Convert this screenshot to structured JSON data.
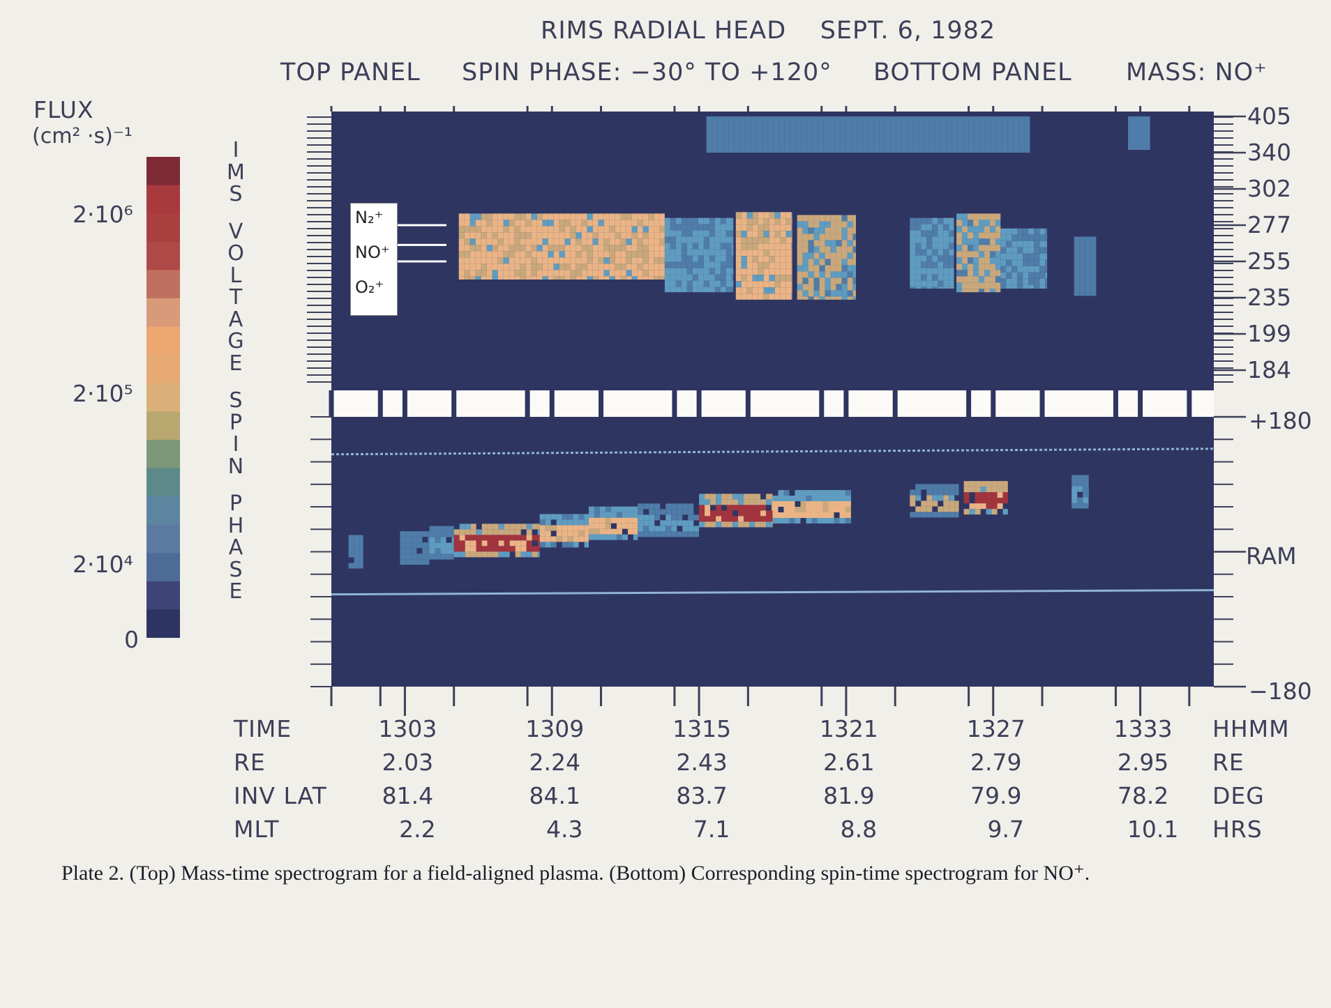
{
  "chart_data": [
    {
      "type": "heatmap",
      "panel": "top",
      "title": "RIMS RADIAL HEAD    SEPT. 6, 1982",
      "subtitle_left": "TOP PANEL",
      "subtitle_left_value": "SPIN PHASE: −30° TO +120°",
      "subtitle_right": "BOTTOM PANEL",
      "subtitle_right_value": "MASS: NO⁺",
      "ylabel": "IMS VOLTAGE",
      "y_ticks": [
        "405",
        "340",
        "302",
        "277",
        "255",
        "235",
        "199",
        "184"
      ],
      "x_ticks": [
        "1303",
        "1309",
        "1315",
        "1321",
        "1327",
        "1333"
      ],
      "xlim": [
        1300,
        1336
      ],
      "ion_labels": [
        "N₂⁺",
        "NO⁺",
        "O₂⁺"
      ],
      "bands": [
        {
          "name": "N₂⁺",
          "voltage": 277
        },
        {
          "name": "NO⁺",
          "voltage": 265
        },
        {
          "name": "O₂⁺",
          "voltage": 255
        }
      ],
      "blocks": [
        {
          "t0": 1305.2,
          "t1": 1313.6,
          "v0": 245,
          "v1": 285,
          "level": 4
        },
        {
          "t0": 1313.6,
          "t1": 1316.4,
          "v0": 238,
          "v1": 282,
          "level": 2
        },
        {
          "t0": 1316.5,
          "t1": 1318.8,
          "v0": 233,
          "v1": 286,
          "level": 4
        },
        {
          "t0": 1319.0,
          "t1": 1321.4,
          "v0": 233,
          "v1": 284,
          "level": 3
        },
        {
          "t0": 1323.6,
          "t1": 1325.4,
          "v0": 240,
          "v1": 282,
          "level": 2
        },
        {
          "t0": 1325.5,
          "t1": 1327.3,
          "v0": 238,
          "v1": 285,
          "level": 3
        },
        {
          "t0": 1327.3,
          "t1": 1329.2,
          "v0": 240,
          "v1": 275,
          "level": 2
        },
        {
          "t0": 1330.3,
          "t1": 1331.2,
          "v0": 236,
          "v1": 270,
          "level": 1
        },
        {
          "t0": 1315.3,
          "t1": 1328.5,
          "v0": 340,
          "v1": 405,
          "level": 1
        },
        {
          "t0": 1332.5,
          "t1": 1333.4,
          "v0": 345,
          "v1": 405,
          "level": 1
        }
      ]
    },
    {
      "type": "heatmap",
      "panel": "bottom",
      "ylabel": "SPIN PHASE",
      "y_ticks": [
        "+180",
        "RAM",
        "−180"
      ],
      "ylim": [
        -180,
        180
      ],
      "x_ticks": [
        "1303",
        "1309",
        "1315",
        "1321",
        "1327",
        "1333"
      ],
      "xlim": [
        1300,
        1336
      ],
      "trace": [
        {
          "t0": 1300.7,
          "t1": 1301.3,
          "phase": 0,
          "level": 1
        },
        {
          "t0": 1302.8,
          "t1": 1304.0,
          "phase": 5,
          "level": 1
        },
        {
          "t0": 1304.0,
          "t1": 1305.0,
          "phase": 12,
          "level": 2
        },
        {
          "t0": 1305.0,
          "t1": 1308.5,
          "phase": 15,
          "level": 5
        },
        {
          "t0": 1308.5,
          "t1": 1310.5,
          "phase": 28,
          "level": 4
        },
        {
          "t0": 1310.5,
          "t1": 1312.5,
          "phase": 38,
          "level": 4
        },
        {
          "t0": 1312.5,
          "t1": 1315.0,
          "phase": 42,
          "level": 2
        },
        {
          "t0": 1315.0,
          "t1": 1318.0,
          "phase": 55,
          "level": 5
        },
        {
          "t0": 1318.0,
          "t1": 1321.2,
          "phase": 60,
          "level": 4
        },
        {
          "t0": 1323.6,
          "t1": 1325.6,
          "phase": 68,
          "level": 3
        },
        {
          "t0": 1325.8,
          "t1": 1327.6,
          "phase": 72,
          "level": 5
        },
        {
          "t0": 1330.2,
          "t1": 1330.9,
          "phase": 80,
          "level": 2
        }
      ],
      "bounds_upper": 130,
      "bounds_lower": -55
    }
  ],
  "colorbar": {
    "title": "FLUX",
    "units": "(cm² ·s)⁻¹",
    "tick_labels": [
      "2·10⁶",
      "2·10⁵",
      "2·10⁴",
      "0"
    ],
    "colors": [
      "#7d2a35",
      "#a83a3e",
      "#a9403f",
      "#ad4a47",
      "#c07060",
      "#d99a7a",
      "#eca870",
      "#e8aa74",
      "#dcb07a",
      "#b8a870",
      "#7d9878",
      "#5d8a88",
      "#5c86a0",
      "#5c7aa0",
      "#4e6a96",
      "#3d4578",
      "#2e3462"
    ]
  },
  "table": {
    "rows": [
      {
        "label": "TIME",
        "values": [
          "1303",
          "1309",
          "1315",
          "1321",
          "1327",
          "1333"
        ],
        "unit": "HHMM"
      },
      {
        "label": "RE",
        "values": [
          "2.03",
          "2.24",
          "2.43",
          "2.61",
          "2.79",
          "2.95"
        ],
        "unit": "RE"
      },
      {
        "label": "INV LAT",
        "values": [
          "81.4",
          "84.1",
          "83.7",
          "81.9",
          "79.9",
          "78.2"
        ],
        "unit": "DEG"
      },
      {
        "label": "MLT",
        "values": [
          "2.2",
          "4.3",
          "7.1",
          "8.8",
          "9.7",
          "10.1"
        ],
        "unit": "HRS"
      }
    ]
  },
  "caption": "Plate 2.  (Top) Mass-time spectrogram for a field-aligned plasma. (Bottom) Corresponding spin-time spectrogram for NO⁺."
}
